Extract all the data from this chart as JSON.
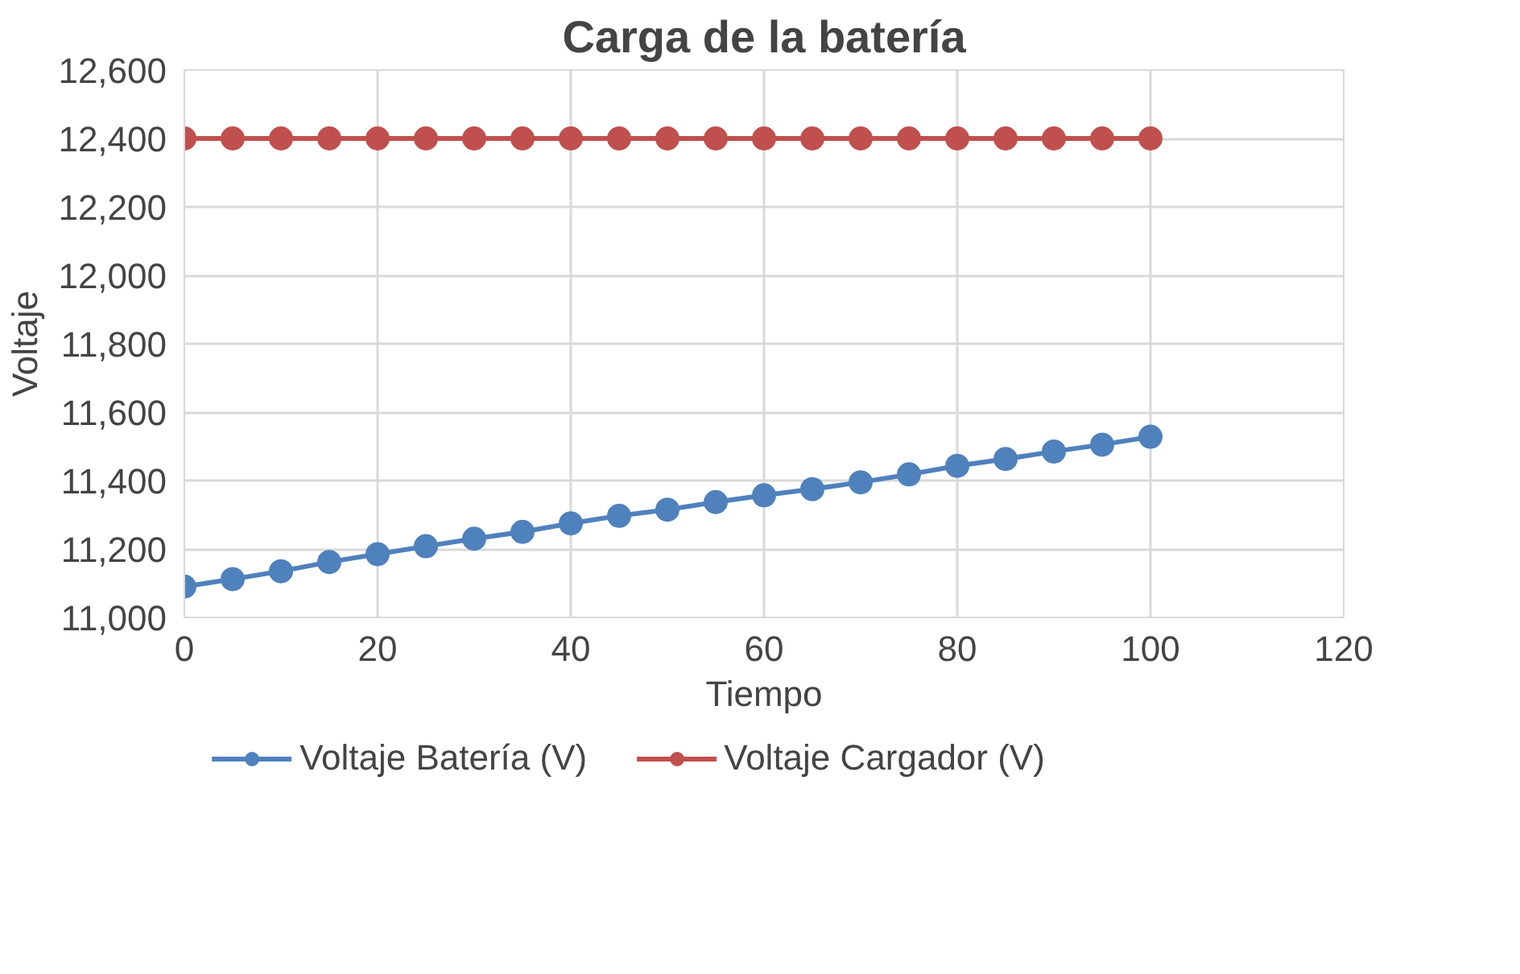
{
  "chart_data": {
    "type": "line",
    "title": "Carga de la batería",
    "xlabel": "Tiempo",
    "ylabel": "Voltaje",
    "x": [
      0,
      5,
      10,
      15,
      20,
      25,
      30,
      35,
      40,
      45,
      50,
      55,
      60,
      65,
      70,
      75,
      80,
      85,
      90,
      95,
      100
    ],
    "series": [
      {
        "name": "Voltaje Batería (V)",
        "color": "#4f81bd",
        "values": [
          11090,
          11112,
          11135,
          11162,
          11185,
          11208,
          11230,
          11250,
          11275,
          11297,
          11315,
          11337,
          11357,
          11375,
          11395,
          11418,
          11443,
          11463,
          11485,
          11505,
          11528
        ]
      },
      {
        "name": "Voltaje Cargador (V)",
        "color": "#c0504d",
        "values": [
          12400,
          12400,
          12400,
          12400,
          12400,
          12400,
          12400,
          12400,
          12400,
          12400,
          12400,
          12400,
          12400,
          12400,
          12400,
          12400,
          12400,
          12400,
          12400,
          12400,
          12400
        ]
      }
    ],
    "xlim": [
      0,
      120
    ],
    "xticks": [
      0,
      20,
      40,
      60,
      80,
      100,
      120
    ],
    "ylim": [
      11000,
      12600
    ],
    "yticks": [
      {
        "value": 11000,
        "label": "11,000"
      },
      {
        "value": 11200,
        "label": "11,200"
      },
      {
        "value": 11400,
        "label": "11,400"
      },
      {
        "value": 11600,
        "label": "11,600"
      },
      {
        "value": 11800,
        "label": "11,800"
      },
      {
        "value": 12000,
        "label": "12,000"
      },
      {
        "value": 12200,
        "label": "12,200"
      },
      {
        "value": 12400,
        "label": "12,400"
      },
      {
        "value": 12600,
        "label": "12,600"
      }
    ],
    "grid": true,
    "legend": "bottom",
    "marker": "circle",
    "line_style": "solid"
  }
}
